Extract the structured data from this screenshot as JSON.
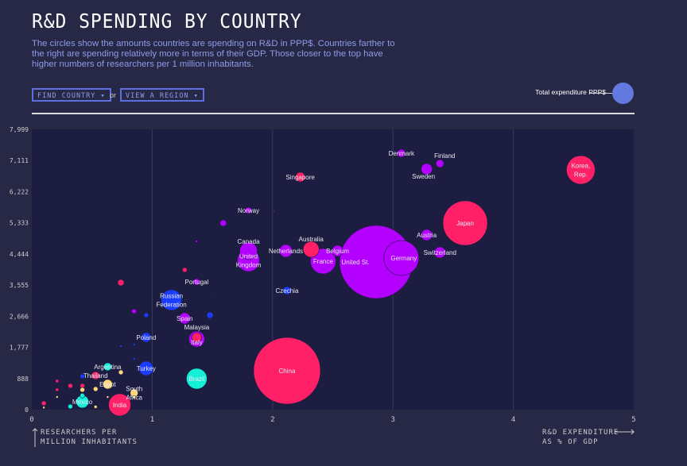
{
  "header": {
    "title": "R&D SPENDING BY COUNTRY",
    "description": "The circles show the amounts countries are spending on R&D in PPP$. Countries farther to the right are spending relatively more in terms of their GDP. Those closer to the top have higher numbers of researchers per 1 million inhabitants."
  },
  "controls": {
    "find_country": "FIND COUNTRY ▾",
    "or": "or",
    "view_region": "VIEW A REGION ▾",
    "legend_label": "Total expenditure PPP$"
  },
  "colors": {
    "background": "#272846",
    "plot": "#1c1d40",
    "pink": "#ff2068",
    "purple": "#b300ff",
    "blue": "#1a3cff",
    "cyan": "#14f0d8",
    "yellow": "#ffd77a",
    "legend": "#6279e0"
  },
  "chart_data": {
    "type": "scatter",
    "xlabel": "R&D EXPENDITURE AS % OF GDP",
    "ylabel": "RESEARCHERS PER MILLION INHABITANTS",
    "xlim": [
      0,
      5
    ],
    "ylim": [
      0,
      7999
    ],
    "x_ticks": [
      "0",
      "1",
      "2",
      "3",
      "4",
      "5"
    ],
    "y_ticks": [
      "0",
      "888",
      "1,777",
      "2,666",
      "3,555",
      "4,444",
      "5,333",
      "6,222",
      "7,111",
      "7,999"
    ],
    "grid": "vertical",
    "points": [
      {
        "label": "United St.",
        "x": 2.86,
        "y": 4215,
        "size": 46,
        "color": "purple"
      },
      {
        "label": "China",
        "x": 2.12,
        "y": 1110,
        "size": 42,
        "color": "pink"
      },
      {
        "label": "Japan",
        "x": 3.6,
        "y": 5325,
        "size": 28,
        "color": "pink"
      },
      {
        "label": "Germany",
        "x": 3.07,
        "y": 4328,
        "size": 22,
        "color": "purple"
      },
      {
        "label": "Korea, Rep.",
        "x": 4.56,
        "y": 6843,
        "size": 18,
        "color": "pink"
      },
      {
        "label": "France",
        "x": 2.42,
        "y": 4237,
        "size": 16,
        "color": "purple"
      },
      {
        "label": "United Kingdom",
        "x": 1.8,
        "y": 4260,
        "size": 14,
        "color": "purple"
      },
      {
        "label": "India",
        "x": 0.73,
        "y": 136,
        "size": 14,
        "color": "pink"
      },
      {
        "label": "Russian Federation",
        "x": 1.16,
        "y": 3127,
        "size": 13,
        "color": "blue"
      },
      {
        "label": "Brazil",
        "x": 1.37,
        "y": 884,
        "size": 13,
        "color": "cyan"
      },
      {
        "label": "Canada",
        "x": 1.8,
        "y": 4532,
        "size": 11,
        "color": "purple"
      },
      {
        "label": "Italy",
        "x": 1.37,
        "y": 2015,
        "size": 10,
        "color": "purple"
      },
      {
        "label": "Australia",
        "x": 2.32,
        "y": 4577,
        "size": 10,
        "color": "pink"
      },
      {
        "label": "Turkey",
        "x": 0.95,
        "y": 1178,
        "size": 9,
        "color": "blue"
      },
      {
        "label": "Netherlands",
        "x": 2.11,
        "y": 4532,
        "size": 8,
        "color": "purple"
      },
      {
        "label": "Mexico",
        "x": 0.42,
        "y": 227,
        "size": 8,
        "color": "cyan"
      },
      {
        "label": "Sweden",
        "x": 3.28,
        "y": 6866,
        "size": 7,
        "color": "purple"
      },
      {
        "label": "Austria",
        "x": 3.28,
        "y": 4985,
        "size": 7,
        "color": "purple"
      },
      {
        "label": "Switzerland",
        "x": 3.39,
        "y": 4487,
        "size": 7,
        "color": "purple"
      },
      {
        "label": "Belgium",
        "x": 2.54,
        "y": 4532,
        "size": 7,
        "color": "purple"
      },
      {
        "label": "Spain",
        "x": 1.27,
        "y": 2606,
        "size": 7,
        "color": "purple"
      },
      {
        "label": "Singapore",
        "x": 2.23,
        "y": 6640,
        "size": 6,
        "color": "pink"
      },
      {
        "label": "Poland",
        "x": 0.95,
        "y": 2062,
        "size": 6,
        "color": "blue"
      },
      {
        "label": "Malaysia",
        "x": 1.37,
        "y": 2062,
        "size": 6,
        "color": "pink"
      },
      {
        "label": "Egypt",
        "x": 0.63,
        "y": 725,
        "size": 6,
        "color": "yellow"
      },
      {
        "label": "Denmark",
        "x": 3.07,
        "y": 7319,
        "size": 5,
        "color": "purple"
      },
      {
        "label": "Finland",
        "x": 3.39,
        "y": 7025,
        "size": 5,
        "color": "purple"
      },
      {
        "label": "Czechia",
        "x": 2.12,
        "y": 3399,
        "size": 5,
        "color": "blue"
      },
      {
        "label": "Argentina",
        "x": 0.63,
        "y": 1224,
        "size": 5,
        "color": "cyan"
      },
      {
        "label": "Thailand",
        "x": 0.53,
        "y": 974,
        "size": 5,
        "color": "pink"
      },
      {
        "label": "South Africa",
        "x": 0.85,
        "y": 476,
        "size": 5,
        "color": "yellow"
      },
      {
        "label": "Norway",
        "x": 1.8,
        "y": 5688,
        "size": 4,
        "color": "purple"
      },
      {
        "label": "Portugal",
        "x": 1.37,
        "y": 3648,
        "size": 4,
        "color": "purple"
      },
      {
        "label": "",
        "x": 0.74,
        "y": 3625,
        "size": 4,
        "color": "pink"
      },
      {
        "label": "",
        "x": 1.27,
        "y": 3987,
        "size": 3,
        "color": "pink"
      },
      {
        "label": "",
        "x": 1.59,
        "y": 5325,
        "size": 4,
        "color": "purple"
      },
      {
        "label": "",
        "x": 1.37,
        "y": 4803,
        "size": 1.5,
        "color": "purple"
      },
      {
        "label": "",
        "x": 2.01,
        "y": 5665,
        "size": 1,
        "color": "purple"
      },
      {
        "label": "",
        "x": 0.85,
        "y": 2809,
        "size": 3,
        "color": "purple"
      },
      {
        "label": "",
        "x": 0.95,
        "y": 2696,
        "size": 3,
        "color": "blue"
      },
      {
        "label": "",
        "x": 1.48,
        "y": 2696,
        "size": 4,
        "color": "blue"
      },
      {
        "label": "",
        "x": 1.48,
        "y": 3308,
        "size": 1,
        "color": "blue"
      },
      {
        "label": "",
        "x": 0.85,
        "y": 1858,
        "size": 1.5,
        "color": "blue"
      },
      {
        "label": "",
        "x": 0.85,
        "y": 1450,
        "size": 1.5,
        "color": "blue"
      },
      {
        "label": "",
        "x": 0.74,
        "y": 1813,
        "size": 1.5,
        "color": "blue"
      },
      {
        "label": "",
        "x": 0.42,
        "y": 952,
        "size": 3,
        "color": "blue"
      },
      {
        "label": "",
        "x": 0.74,
        "y": 1065,
        "size": 3,
        "color": "yellow"
      },
      {
        "label": "",
        "x": 0.53,
        "y": 589,
        "size": 3,
        "color": "yellow"
      },
      {
        "label": "",
        "x": 0.42,
        "y": 680,
        "size": 3,
        "color": "pink"
      },
      {
        "label": "",
        "x": 0.42,
        "y": 567,
        "size": 3,
        "color": "yellow"
      },
      {
        "label": "",
        "x": 0.21,
        "y": 816,
        "size": 2,
        "color": "pink"
      },
      {
        "label": "",
        "x": 0.21,
        "y": 567,
        "size": 2,
        "color": "pink"
      },
      {
        "label": "",
        "x": 0.32,
        "y": 680,
        "size": 3,
        "color": "pink"
      },
      {
        "label": "",
        "x": 0.32,
        "y": 90,
        "size": 3,
        "color": "cyan"
      },
      {
        "label": "",
        "x": 0.42,
        "y": 400,
        "size": 3,
        "color": "cyan"
      },
      {
        "label": "",
        "x": 0.1,
        "y": 180,
        "size": 3,
        "color": "pink"
      },
      {
        "label": "",
        "x": 0.21,
        "y": 360,
        "size": 1.5,
        "color": "yellow"
      },
      {
        "label": "",
        "x": 0.53,
        "y": 80,
        "size": 2,
        "color": "yellow"
      },
      {
        "label": "",
        "x": 0.63,
        "y": 360,
        "size": 1.5,
        "color": "yellow"
      },
      {
        "label": "",
        "x": 0.85,
        "y": 360,
        "size": 2,
        "color": "yellow"
      },
      {
        "label": "",
        "x": 0.1,
        "y": 60,
        "size": 1.5,
        "color": "yellow"
      }
    ]
  }
}
